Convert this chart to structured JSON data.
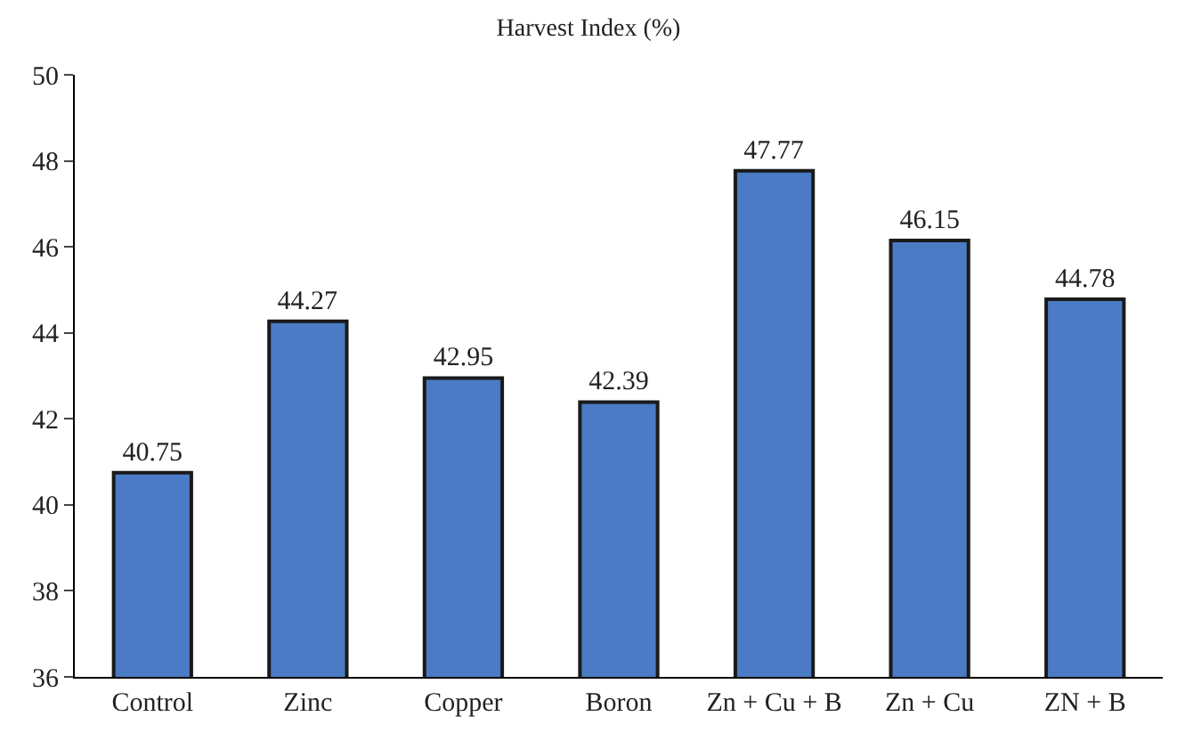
{
  "chart_data": {
    "type": "bar",
    "title": "Harvest Index (%)",
    "categories": [
      "Control",
      "Zinc",
      "Copper",
      "Boron",
      "Zn + Cu + B",
      "Zn + Cu",
      "ZN + B"
    ],
    "values": [
      40.75,
      44.27,
      42.95,
      42.39,
      47.77,
      46.15,
      44.78
    ],
    "color": "#4a7bc4",
    "ylim": [
      36,
      50
    ],
    "yticks": [
      36,
      38,
      40,
      42,
      44,
      46,
      48,
      50
    ],
    "data_labels": true,
    "legend": false
  }
}
